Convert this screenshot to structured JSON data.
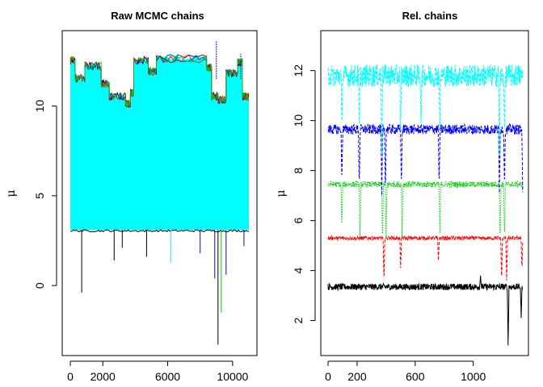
{
  "chart_data": [
    {
      "type": "line",
      "title": "Raw MCMC chains",
      "xlabel": "",
      "ylabel": "μ",
      "xlim": [
        -500,
        11500
      ],
      "ylim": [
        -3.9,
        14.2
      ],
      "x_ticks": [
        0,
        2000,
        6000,
        10000
      ],
      "y_ticks": [
        0,
        5,
        10
      ],
      "legend": "none",
      "series_colors": [
        "#000000",
        "#ff0000",
        "#00cd00",
        "#0000ff",
        "#00ffff"
      ],
      "band_description_values": {
        "upper_envelope_segments": [
          {
            "x": [
              0,
              300
            ],
            "y": 12.6
          },
          {
            "x": [
              300,
              900
            ],
            "y": 11.6
          },
          {
            "x": [
              900,
              1900
            ],
            "y": 12.3
          },
          {
            "x": [
              1900,
              2400
            ],
            "y": 11.3
          },
          {
            "x": [
              2400,
              3400
            ],
            "y": 10.6
          },
          {
            "x": [
              3400,
              3700
            ],
            "y": 10.2
          },
          {
            "x": [
              3700,
              3900
            ],
            "y": 10.8
          },
          {
            "x": [
              3900,
              4800
            ],
            "y": 12.6
          },
          {
            "x": [
              4800,
              5300
            ],
            "y": 12.0
          },
          {
            "x": [
              5300,
              8400
            ],
            "y": 12.7
          },
          {
            "x": [
              8400,
              8700
            ],
            "y": 12.2
          },
          {
            "x": [
              8700,
              9100
            ],
            "y": 10.6
          },
          {
            "x": [
              9100,
              9600
            ],
            "y": 10.4
          },
          {
            "x": [
              9600,
              10300
            ],
            "y": 11.9
          },
          {
            "x": [
              10300,
              10600
            ],
            "y": 12.5
          },
          {
            "x": [
              10600,
              11000
            ],
            "y": 10.6
          }
        ],
        "lower_envelope": 3.1,
        "spikes_down": [
          {
            "x": 700,
            "y": -0.4,
            "color": "#000000"
          },
          {
            "x": 2700,
            "y": 1.4,
            "color": "#000000"
          },
          {
            "x": 3200,
            "y": 2.1,
            "color": "#000000"
          },
          {
            "x": 4700,
            "y": 1.6,
            "color": "#000000"
          },
          {
            "x": 6200,
            "y": 1.3,
            "color": "#00ffff"
          },
          {
            "x": 8000,
            "y": 1.8,
            "color": "#0000ff"
          },
          {
            "x": 8900,
            "y": 0.4,
            "color": "#0000ff"
          },
          {
            "x": 9100,
            "y": -3.3,
            "color": "#000000"
          },
          {
            "x": 9300,
            "y": -1.5,
            "color": "#00cd00"
          },
          {
            "x": 9600,
            "y": 0.6,
            "color": "#0000ff"
          },
          {
            "x": 10700,
            "y": 2.2,
            "color": "#0000ff"
          }
        ],
        "spikes_up": [
          {
            "x": 9000,
            "y": 13.6,
            "color": "#0000ff"
          },
          {
            "x": 10500,
            "y": 12.9,
            "color": "#0000ff"
          }
        ]
      }
    },
    {
      "type": "line",
      "title": "Rel. chains",
      "xlabel": "",
      "ylabel": "μ",
      "xlim": [
        -50,
        1380
      ],
      "ylim": [
        0.6,
        13.6
      ],
      "x_ticks": [
        0,
        200,
        600,
        1000
      ],
      "y_ticks": [
        2,
        4,
        6,
        8,
        10,
        12
      ],
      "legend": "none",
      "series": [
        {
          "color": "#000000",
          "style": "solid",
          "level": 3.35,
          "noise": 0.13,
          "excursions": [
            {
              "x": 1050,
              "y": 3.8
            },
            {
              "x": 1240,
              "y": 1.0
            },
            {
              "x": 1330,
              "y": 2.1
            }
          ]
        },
        {
          "color": "#ff0000",
          "style": "dashed",
          "level": 5.3,
          "noise": 0.08,
          "excursions": [
            {
              "x": 385,
              "y": 3.5
            },
            {
              "x": 500,
              "y": 4.1
            },
            {
              "x": 760,
              "y": 4.4
            },
            {
              "x": 1195,
              "y": 3.5
            },
            {
              "x": 1230,
              "y": 3.6
            },
            {
              "x": 1335,
              "y": 4.0
            }
          ]
        },
        {
          "color": "#00cd00",
          "style": "dotted",
          "level": 7.45,
          "noise": 0.12,
          "excursions": [
            {
              "x": 95,
              "y": 5.6
            },
            {
              "x": 220,
              "y": 5.3
            },
            {
              "x": 375,
              "y": 5.1
            },
            {
              "x": 400,
              "y": 5.3
            },
            {
              "x": 510,
              "y": 5.3
            },
            {
              "x": 770,
              "y": 5.5
            },
            {
              "x": 1185,
              "y": 5.1
            },
            {
              "x": 1215,
              "y": 5.2
            },
            {
              "x": 1345,
              "y": 5.0
            }
          ]
        },
        {
          "color": "#0000ff",
          "style": "dashed",
          "level": 9.65,
          "noise": 0.2,
          "excursions": [
            {
              "x": 95,
              "y": 7.5
            },
            {
              "x": 215,
              "y": 7.3
            },
            {
              "x": 370,
              "y": 7.0
            },
            {
              "x": 395,
              "y": 7.1
            },
            {
              "x": 505,
              "y": 7.3
            },
            {
              "x": 765,
              "y": 7.3
            },
            {
              "x": 1180,
              "y": 7.1
            },
            {
              "x": 1215,
              "y": 7.3
            },
            {
              "x": 1340,
              "y": 7.2
            }
          ]
        },
        {
          "color": "#00ffff",
          "style": "dashed",
          "level": 11.8,
          "noise": 0.45,
          "max": 13.0,
          "excursions": [
            {
              "x": 95,
              "y": 9.7
            },
            {
              "x": 215,
              "y": 9.5
            },
            {
              "x": 370,
              "y": 8.6
            },
            {
              "x": 500,
              "y": 9.6
            },
            {
              "x": 640,
              "y": 9.9
            },
            {
              "x": 770,
              "y": 9.7
            },
            {
              "x": 1180,
              "y": 8.6
            },
            {
              "x": 1215,
              "y": 9.4
            }
          ]
        }
      ],
      "n_iterations": 1340
    }
  ]
}
